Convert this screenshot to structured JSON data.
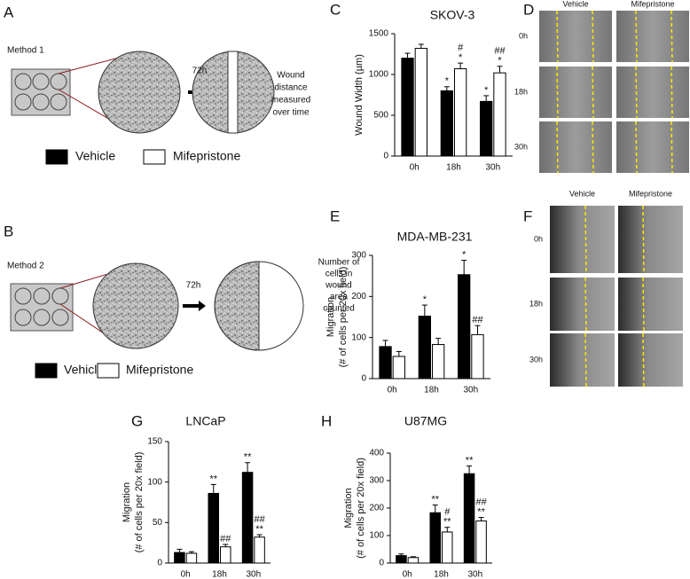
{
  "panel_labels": [
    "A",
    "B",
    "C",
    "D",
    "E",
    "F",
    "G",
    "H"
  ],
  "diagrams": [
    {
      "method": "Method 1",
      "time": "72h",
      "note": [
        "Wound",
        "distance",
        "measured",
        "over time"
      ]
    },
    {
      "method": "Method 2",
      "time": "72h",
      "note": [
        "Number of",
        "cells in",
        "wound",
        "area",
        "counted"
      ]
    }
  ],
  "micrographs": [
    {
      "columns": [
        "Vehicle",
        "Mifepristone"
      ],
      "rows": [
        "0h",
        "18h",
        "30h"
      ]
    },
    {
      "columns": [
        "Vehicle",
        "Mifepristone"
      ],
      "rows": [
        "0h",
        "18h",
        "30h"
      ]
    }
  ],
  "chart_data": [
    {
      "type": "bar",
      "title": "SKOV-3",
      "ylabel": [
        "Wound Width (µm)"
      ],
      "categories": [
        "0h",
        "18h",
        "30h"
      ],
      "ylim": [
        0,
        1500
      ],
      "yticks": [
        0,
        500,
        1000,
        1500
      ],
      "series": [
        {
          "name": "Vehicle",
          "color": "#000000",
          "values": [
            1200,
            800,
            670
          ],
          "errors": [
            60,
            50,
            70
          ],
          "annotations": [
            null,
            [
              "*"
            ],
            [
              "*"
            ]
          ]
        },
        {
          "name": "Mifepristone",
          "color": "#ffffff",
          "values": [
            1320,
            1070,
            1020
          ],
          "errors": [
            50,
            70,
            80
          ],
          "annotations": [
            null,
            [
              "#",
              "*"
            ],
            [
              "##",
              "*"
            ]
          ]
        }
      ]
    },
    {
      "type": "bar",
      "title": "MDA-MB-231",
      "ylabel": [
        "Migration",
        "(# of cells per 20x field)"
      ],
      "categories": [
        "0h",
        "18h",
        "30h"
      ],
      "ylim": [
        0,
        300
      ],
      "yticks": [
        0,
        100,
        200,
        300
      ],
      "series": [
        {
          "name": "Vehicle",
          "color": "#000000",
          "values": [
            78,
            152,
            253
          ],
          "errors": [
            15,
            27,
            35
          ],
          "annotations": [
            null,
            [
              "*"
            ],
            [
              "*"
            ]
          ]
        },
        {
          "name": "Mifepristone",
          "color": "#ffffff",
          "values": [
            54,
            83,
            107
          ],
          "errors": [
            12,
            15,
            22
          ],
          "annotations": [
            null,
            null,
            [
              "##"
            ]
          ]
        }
      ]
    },
    {
      "type": "bar",
      "title": "LNCaP",
      "ylabel": [
        "Migration",
        "(# of cells per 20x field)"
      ],
      "categories": [
        "0h",
        "18h",
        "30h"
      ],
      "ylim": [
        0,
        150
      ],
      "yticks": [
        0,
        50,
        100,
        150
      ],
      "series": [
        {
          "name": "Vehicle",
          "color": "#000000",
          "values": [
            13,
            86,
            112
          ],
          "errors": [
            4,
            11,
            12
          ],
          "annotations": [
            null,
            [
              "**"
            ],
            [
              "**"
            ]
          ]
        },
        {
          "name": "Mifepristone",
          "color": "#ffffff",
          "values": [
            12,
            20,
            32
          ],
          "errors": [
            2,
            3,
            3
          ],
          "annotations": [
            null,
            [
              "##"
            ],
            [
              "##",
              "**"
            ]
          ]
        }
      ]
    },
    {
      "type": "bar",
      "title": "U87MG",
      "ylabel": [
        "Migration",
        "(# of cells per 20x field)"
      ],
      "categories": [
        "0h",
        "18h",
        "30h"
      ],
      "ylim": [
        0,
        400
      ],
      "yticks": [
        0,
        100,
        200,
        300,
        400
      ],
      "series": [
        {
          "name": "Vehicle",
          "color": "#000000",
          "values": [
            27,
            183,
            325
          ],
          "errors": [
            6,
            28,
            28
          ],
          "annotations": [
            null,
            [
              "**"
            ],
            [
              "**"
            ]
          ]
        },
        {
          "name": "Mifepristone",
          "color": "#ffffff",
          "values": [
            20,
            113,
            153
          ],
          "errors": [
            3,
            17,
            13
          ],
          "annotations": [
            null,
            [
              "#",
              "**"
            ],
            [
              "##",
              "**"
            ]
          ]
        }
      ]
    }
  ]
}
